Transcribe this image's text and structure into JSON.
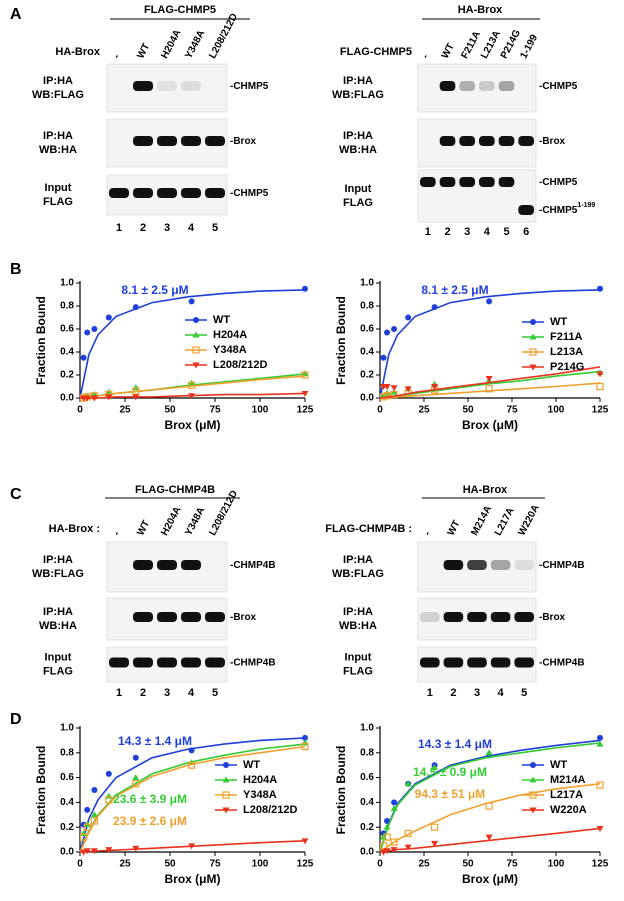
{
  "panels": {
    "A": {
      "letter": "A",
      "left": {
        "header": "FLAG-CHMP5",
        "condition": "HA-Brox",
        "lanes": [
          "-",
          "WT",
          "H204A",
          "Y348A",
          "L208/212D"
        ],
        "rows": [
          {
            "label": [
              "IP:HA",
              "WB:FLAG"
            ],
            "bands": [
              "-CHMP5"
            ]
          },
          {
            "label": [
              "IP:HA",
              "WB:HA"
            ],
            "bands": [
              "-Brox"
            ]
          },
          {
            "label": [
              "Input",
              "FLAG"
            ],
            "bands": [
              "-CHMP5"
            ]
          }
        ],
        "numbers": [
          "1",
          "2",
          "3",
          "4",
          "5"
        ]
      },
      "right": {
        "header": "HA-Brox",
        "condition": "FLAG-CHMP5",
        "lanes": [
          "-",
          "WT",
          "F211A",
          "L213A",
          "P214G",
          "1-199"
        ],
        "rows": [
          {
            "label": [
              "IP:HA",
              "WB:FLAG"
            ],
            "bands": [
              "-CHMP5"
            ]
          },
          {
            "label": [
              "IP:HA",
              "WB:HA"
            ],
            "bands": [
              "-Brox"
            ]
          },
          {
            "label": [
              "Input",
              "FLAG"
            ],
            "bands": [
              "-CHMP5",
              "-CHMP5"
            ],
            "band_sup": "1-199"
          }
        ],
        "numbers": [
          "1",
          "2",
          "3",
          "4",
          "5",
          "6"
        ]
      }
    },
    "B": {
      "letter": "B"
    },
    "C": {
      "letter": "C",
      "left": {
        "header": "FLAG-CHMP4B",
        "condition": "HA-Brox :",
        "lanes": [
          "-",
          "WT",
          "H204A",
          "Y348A",
          "L208/212D"
        ],
        "rows": [
          {
            "label": [
              "IP:HA",
              "WB:FLAG"
            ],
            "bands": [
              "-CHMP4B"
            ]
          },
          {
            "label": [
              "IP:HA",
              "WB:HA"
            ],
            "bands": [
              "-Brox"
            ]
          },
          {
            "label": [
              "Input",
              "FLAG"
            ],
            "bands": [
              "-CHMP4B"
            ]
          }
        ],
        "numbers": [
          "1",
          "2",
          "3",
          "4",
          "5"
        ]
      },
      "right": {
        "header": "HA-Brox",
        "condition": "FLAG-CHMP4B :",
        "lanes": [
          "-",
          "WT",
          "M214A",
          "L217A",
          "W220A"
        ],
        "rows": [
          {
            "label": [
              "IP:HA",
              "WB:FLAG"
            ],
            "bands": [
              "-CHMP4B"
            ]
          },
          {
            "label": [
              "IP:HA",
              "WB:HA"
            ],
            "bands": [
              "-Brox"
            ]
          },
          {
            "label": [
              "Input",
              "FLAG"
            ],
            "bands": [
              "-CHMP4B"
            ]
          }
        ],
        "numbers": [
          "1",
          "2",
          "3",
          "4",
          "5"
        ]
      }
    },
    "D": {
      "letter": "D"
    }
  },
  "chart_data": [
    {
      "type": "scatter",
      "x_label": "Brox (μM)",
      "y_label": "Fraction Bound",
      "xlim": [
        0,
        125
      ],
      "xticks": [
        0,
        25,
        50,
        75,
        100,
        125
      ],
      "ylim": [
        0,
        1.0
      ],
      "yticks": [
        {
          "value": 0,
          "label": "0.0"
        },
        0.2,
        0.4,
        0.6,
        0.8,
        {
          "value": 1.0,
          "label": "1.0"
        }
      ],
      "x": [
        2,
        4,
        8,
        16,
        31,
        62,
        125
      ],
      "fit_x": [
        0,
        5,
        10,
        20,
        40,
        60,
        80,
        100,
        125
      ],
      "annotations": [
        {
          "text": "8.1 ± 2.5 μM",
          "color": "#1f3fdb"
        }
      ],
      "series": [
        {
          "name": "WT",
          "color": "#1f3fdb",
          "marker": "circle",
          "values": [
            0.35,
            0.57,
            0.6,
            0.7,
            0.79,
            0.84,
            0.95
          ],
          "fit": [
            0,
            0.38,
            0.55,
            0.71,
            0.83,
            0.88,
            0.91,
            0.93,
            0.94
          ]
        },
        {
          "name": "H204A",
          "color": "#33cc33",
          "marker": "triangle-up",
          "values": [
            0.01,
            0.02,
            0.03,
            0.05,
            0.09,
            0.13,
            0.21
          ],
          "fit": [
            0,
            0.01,
            0.02,
            0.04,
            0.07,
            0.11,
            0.14,
            0.17,
            0.21
          ]
        },
        {
          "name": "Y348A",
          "color": "#f0a030",
          "marker": "square-open",
          "values": [
            0,
            0.01,
            0.02,
            0.03,
            0.06,
            0.11,
            0.2
          ],
          "fit": [
            0,
            0.01,
            0.02,
            0.04,
            0.07,
            0.1,
            0.13,
            0.16,
            0.19
          ]
        },
        {
          "name": "L208/212D",
          "color": "#e8321e",
          "marker": "triangle-down",
          "values": [
            0,
            0,
            0,
            0.01,
            0.01,
            0.02,
            0.04
          ],
          "fit": [
            0,
            0,
            0,
            0.01,
            0.01,
            0.02,
            0.03,
            0.03,
            0.04
          ]
        }
      ]
    },
    {
      "type": "scatter",
      "x_label": "Brox (μM)",
      "y_label": "Fraction Bound",
      "xlim": [
        0,
        125
      ],
      "xticks": [
        0,
        25,
        50,
        75,
        100,
        125
      ],
      "ylim": [
        0,
        1.0
      ],
      "yticks": [
        {
          "value": 0,
          "label": "0.0"
        },
        0.2,
        0.4,
        0.6,
        0.8,
        {
          "value": 1.0,
          "label": "1.0"
        }
      ],
      "x": [
        2,
        4,
        8,
        16,
        31,
        62,
        125
      ],
      "fit_x": [
        0,
        5,
        10,
        20,
        40,
        60,
        80,
        100,
        125
      ],
      "annotations": [
        {
          "text": "8.1 ± 2.5 μM",
          "color": "#1f3fdb"
        }
      ],
      "series": [
        {
          "name": "WT",
          "color": "#1f3fdb",
          "marker": "circle",
          "values": [
            0.35,
            0.57,
            0.6,
            0.7,
            0.79,
            0.84,
            0.95
          ],
          "fit": [
            0,
            0.38,
            0.55,
            0.71,
            0.83,
            0.88,
            0.91,
            0.93,
            0.94
          ]
        },
        {
          "name": "F211A",
          "color": "#33cc33",
          "marker": "triangle-up",
          "values": [
            0.02,
            0.04,
            0.05,
            0.08,
            0.12,
            0.15,
            0.22
          ],
          "fit": [
            0,
            0.01,
            0.02,
            0.04,
            0.08,
            0.12,
            0.15,
            0.19,
            0.23
          ]
        },
        {
          "name": "L213A",
          "color": "#f0a030",
          "marker": "square-open",
          "values": [
            0.01,
            0.02,
            0.03,
            0.04,
            0.07,
            0.08,
            0.1
          ],
          "fit": [
            0,
            0.005,
            0.01,
            0.02,
            0.04,
            0.06,
            0.08,
            0.1,
            0.13
          ]
        },
        {
          "name": "P214G",
          "color": "#e8321e",
          "marker": "triangle-down",
          "values": [
            0.1,
            0.1,
            0.09,
            0.08,
            0.1,
            0.17,
            0.21
          ],
          "fit": [
            0,
            0.01,
            0.02,
            0.05,
            0.09,
            0.13,
            0.17,
            0.21,
            0.27
          ]
        }
      ]
    },
    {
      "type": "scatter",
      "x_label": "Brox (μM)",
      "y_label": "Fraction Bound",
      "xlim": [
        0,
        125
      ],
      "xticks": [
        0,
        25,
        50,
        75,
        100,
        125
      ],
      "ylim": [
        0,
        1.0
      ],
      "yticks": [
        {
          "value": 0,
          "label": "0.0"
        },
        0.2,
        0.4,
        0.6,
        0.8,
        {
          "value": 1.0,
          "label": "1.0"
        }
      ],
      "x": [
        2,
        4,
        8,
        16,
        31,
        62,
        125
      ],
      "fit_x": [
        0,
        5,
        10,
        20,
        40,
        60,
        80,
        100,
        125
      ],
      "annotations": [
        {
          "text": "14.3 ± 1.4 μM",
          "color": "#1f3fdb"
        },
        {
          "text": "23.6 ± 3.9 μM",
          "color": "#33cc33"
        },
        {
          "text": "23.9 ± 2.6 μM",
          "color": "#f0a030"
        }
      ],
      "series": [
        {
          "name": "WT",
          "color": "#1f3fdb",
          "marker": "circle",
          "values": [
            0.22,
            0.34,
            0.5,
            0.63,
            0.76,
            0.82,
            0.92
          ],
          "fit": [
            0,
            0.27,
            0.42,
            0.6,
            0.76,
            0.83,
            0.87,
            0.9,
            0.92
          ]
        },
        {
          "name": "H204A",
          "color": "#33cc33",
          "marker": "triangle-up",
          "values": [
            0.15,
            0.22,
            0.3,
            0.45,
            0.6,
            0.72,
            0.88
          ],
          "fit": [
            0,
            0.17,
            0.3,
            0.46,
            0.63,
            0.72,
            0.78,
            0.83,
            0.87
          ]
        },
        {
          "name": "Y348A",
          "color": "#f0a030",
          "marker": "square-open",
          "values": [
            0.12,
            0.2,
            0.25,
            0.42,
            0.55,
            0.7,
            0.85
          ],
          "fit": [
            0,
            0.16,
            0.29,
            0.45,
            0.61,
            0.7,
            0.76,
            0.8,
            0.85
          ]
        },
        {
          "name": "L208/212D",
          "color": "#e8321e",
          "marker": "triangle-down",
          "values": [
            0,
            0.01,
            0.01,
            0.02,
            0.03,
            0.05,
            0.09
          ],
          "fit": [
            0,
            0.004,
            0.008,
            0.015,
            0.03,
            0.045,
            0.06,
            0.075,
            0.09
          ]
        }
      ]
    },
    {
      "type": "scatter",
      "x_label": "Brox (μM)",
      "y_label": "Fraction Bound",
      "xlim": [
        0,
        125
      ],
      "xticks": [
        0,
        25,
        50,
        75,
        100,
        125
      ],
      "ylim": [
        0,
        1.0
      ],
      "yticks": [
        {
          "value": 0,
          "label": "0.0"
        },
        0.2,
        0.4,
        0.6,
        0.8,
        {
          "value": 1.0,
          "label": "1.0"
        }
      ],
      "x": [
        2,
        4,
        8,
        16,
        31,
        62,
        125
      ],
      "fit_x": [
        0,
        5,
        10,
        20,
        40,
        60,
        80,
        100,
        125
      ],
      "annotations": [
        {
          "text": "14.3 ± 1.4 μM",
          "color": "#1f3fdb"
        },
        {
          "text": "14.5 ± 0.9 μM",
          "color": "#33cc33"
        },
        {
          "text": "94.3 ± 51 μM",
          "color": "#f0a030"
        }
      ],
      "series": [
        {
          "name": "WT",
          "color": "#1f3fdb",
          "marker": "circle",
          "values": [
            0.15,
            0.25,
            0.4,
            0.55,
            0.7,
            0.78,
            0.92
          ],
          "fit": [
            0,
            0.23,
            0.39,
            0.55,
            0.7,
            0.77,
            0.82,
            0.86,
            0.9
          ]
        },
        {
          "name": "M214A",
          "color": "#33cc33",
          "marker": "triangle-up",
          "values": [
            0.12,
            0.2,
            0.35,
            0.55,
            0.68,
            0.8,
            0.87
          ],
          "fit": [
            0,
            0.22,
            0.38,
            0.54,
            0.69,
            0.76,
            0.8,
            0.84,
            0.88
          ]
        },
        {
          "name": "L217A",
          "color": "#f0a030",
          "marker": "square-open",
          "values": [
            0.05,
            0.12,
            0.08,
            0.15,
            0.2,
            0.37,
            0.54
          ],
          "fit": [
            0,
            0.05,
            0.1,
            0.17,
            0.3,
            0.39,
            0.46,
            0.51,
            0.55
          ]
        },
        {
          "name": "W220A",
          "color": "#e8321e",
          "marker": "triangle-down",
          "values": [
            0,
            0.01,
            0.02,
            0.04,
            0.07,
            0.12,
            0.19
          ],
          "fit": [
            0,
            0.01,
            0.02,
            0.03,
            0.06,
            0.09,
            0.12,
            0.15,
            0.19
          ]
        }
      ]
    }
  ]
}
